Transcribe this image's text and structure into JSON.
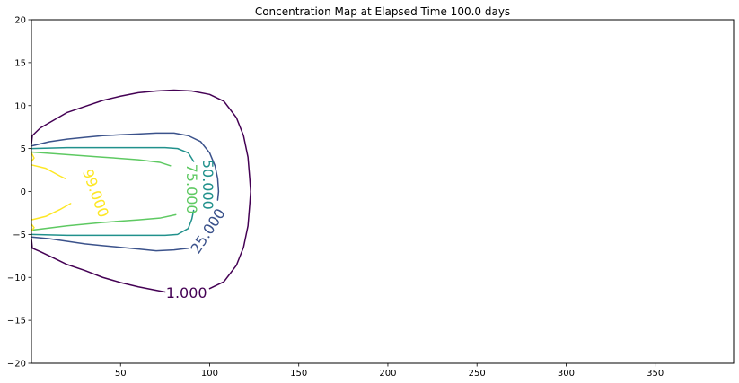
{
  "chart_data": {
    "type": "contour",
    "title": "Concentration Map at Elapsed Time 100.0 days",
    "xlabel": "",
    "ylabel": "",
    "xlim": [
      0,
      394
    ],
    "ylim": [
      -20,
      20
    ],
    "x_ticks": [
      50,
      100,
      150,
      200,
      250,
      300,
      350
    ],
    "x_tick_labels": [
      "50",
      "100",
      "150",
      "200",
      "250",
      "300",
      "350"
    ],
    "y_ticks": [
      20,
      15,
      10,
      5,
      0,
      -5,
      -10,
      -15,
      -20
    ],
    "y_tick_labels": [
      "20",
      "15",
      "10",
      "5",
      "0",
      "−5",
      "−10",
      "−15",
      "−20"
    ],
    "grid": false,
    "levels": [
      {
        "level": 1.0,
        "label": "1.000",
        "color": "#440154",
        "label_pos": [
          87,
          -11.8
        ],
        "label_rotation": 0,
        "paths": [
          [
            [
              0,
              5.5
            ],
            [
              0.5,
              6.5
            ],
            [
              5,
              7.4
            ],
            [
              10,
              8.0
            ],
            [
              15,
              8.6
            ],
            [
              20,
              9.2
            ],
            [
              30,
              9.9
            ],
            [
              40,
              10.6
            ],
            [
              50,
              11.1
            ],
            [
              60,
              11.5
            ],
            [
              70,
              11.7
            ],
            [
              80,
              11.8
            ],
            [
              90,
              11.7
            ],
            [
              100,
              11.3
            ],
            [
              108,
              10.5
            ],
            [
              115,
              8.6
            ],
            [
              119,
              6.5
            ],
            [
              121.5,
              4.0
            ],
            [
              122.5,
              1.5
            ],
            [
              123,
              0
            ],
            [
              122.5,
              -1.5
            ],
            [
              121.5,
              -4.0
            ],
            [
              119,
              -6.5
            ],
            [
              115,
              -8.6
            ],
            [
              108,
              -10.5
            ],
            [
              100,
              -11.3
            ]
          ],
          [
            [
              75,
              -11.7
            ],
            [
              70,
              -11.5
            ],
            [
              60,
              -11.1
            ],
            [
              50,
              -10.6
            ],
            [
              40,
              -10.0
            ],
            [
              30,
              -9.2
            ],
            [
              20,
              -8.5
            ],
            [
              15,
              -8.0
            ],
            [
              10,
              -7.5
            ],
            [
              5,
              -7.0
            ],
            [
              0.5,
              -6.6
            ],
            [
              0,
              -5.5
            ]
          ]
        ]
      },
      {
        "level": 25.0,
        "label": "25.000",
        "color": "#3b528b",
        "label_pos": [
          99,
          -4.6
        ],
        "label_rotation": -57,
        "paths": [
          [
            [
              0,
              5.3
            ],
            [
              10,
              5.8
            ],
            [
              20,
              6.1
            ],
            [
              30,
              6.3
            ],
            [
              40,
              6.5
            ],
            [
              50,
              6.6
            ],
            [
              60,
              6.7
            ],
            [
              70,
              6.8
            ],
            [
              80,
              6.8
            ],
            [
              88,
              6.5
            ],
            [
              95,
              5.8
            ],
            [
              100,
              4.5
            ],
            [
              103,
              3.0
            ],
            [
              104.5,
              1.5
            ],
            [
              105,
              0
            ],
            [
              104.5,
              -1.0
            ]
          ],
          [
            [
              88,
              -6.6
            ],
            [
              80,
              -6.8
            ],
            [
              70,
              -6.9
            ],
            [
              60,
              -6.7
            ],
            [
              50,
              -6.5
            ],
            [
              40,
              -6.3
            ],
            [
              30,
              -6.1
            ],
            [
              20,
              -5.8
            ],
            [
              10,
              -5.5
            ],
            [
              0,
              -5.3
            ]
          ]
        ]
      },
      {
        "level": 50.0,
        "label": "50.000",
        "color": "#21918c",
        "label_pos": [
          99,
          0.8
        ],
        "label_rotation": 90,
        "paths": [
          [
            [
              0,
              5.0
            ],
            [
              20,
              5.1
            ],
            [
              40,
              5.1
            ],
            [
              60,
              5.1
            ],
            [
              75,
              5.1
            ],
            [
              82,
              5.0
            ],
            [
              88,
              4.5
            ],
            [
              91,
              3.5
            ]
          ],
          [
            [
              91,
              -2.2
            ],
            [
              90,
              -3.2
            ],
            [
              88,
              -4.3
            ],
            [
              82,
              -5.0
            ],
            [
              75,
              -5.1
            ],
            [
              60,
              -5.1
            ],
            [
              40,
              -5.1
            ],
            [
              20,
              -5.1
            ],
            [
              0,
              -5.0
            ]
          ]
        ]
      },
      {
        "level": 75.0,
        "label": "75.000",
        "color": "#5ec962",
        "label_pos": [
          90,
          0.3
        ],
        "label_rotation": 90,
        "paths": [
          [
            [
              0,
              4.6
            ],
            [
              20,
              4.3
            ],
            [
              40,
              4.0
            ],
            [
              60,
              3.7
            ],
            [
              72,
              3.4
            ],
            [
              78,
              3.0
            ]
          ],
          [
            [
              81,
              -2.7
            ],
            [
              72,
              -3.1
            ],
            [
              60,
              -3.3
            ],
            [
              40,
              -3.6
            ],
            [
              20,
              -4.0
            ],
            [
              0,
              -4.5
            ]
          ]
        ]
      },
      {
        "level": 99.0,
        "label": "99.000",
        "color": "#fde725",
        "label_pos": [
          36,
          -0.2
        ],
        "label_rotation": 70,
        "paths": [
          [
            [
              0,
              4.5
            ],
            [
              1.5,
              3.9
            ],
            [
              0,
              3.5
            ]
          ],
          [
            [
              0,
              3.1
            ],
            [
              8,
              2.7
            ],
            [
              16,
              1.8
            ],
            [
              19,
              1.5
            ]
          ],
          [
            [
              22,
              -1.4
            ],
            [
              16,
              -2.1
            ],
            [
              8,
              -2.9
            ],
            [
              0,
              -3.3
            ]
          ],
          [
            [
              0,
              -3.8
            ],
            [
              1.5,
              -4.2
            ],
            [
              0,
              -4.6
            ]
          ]
        ]
      }
    ]
  }
}
